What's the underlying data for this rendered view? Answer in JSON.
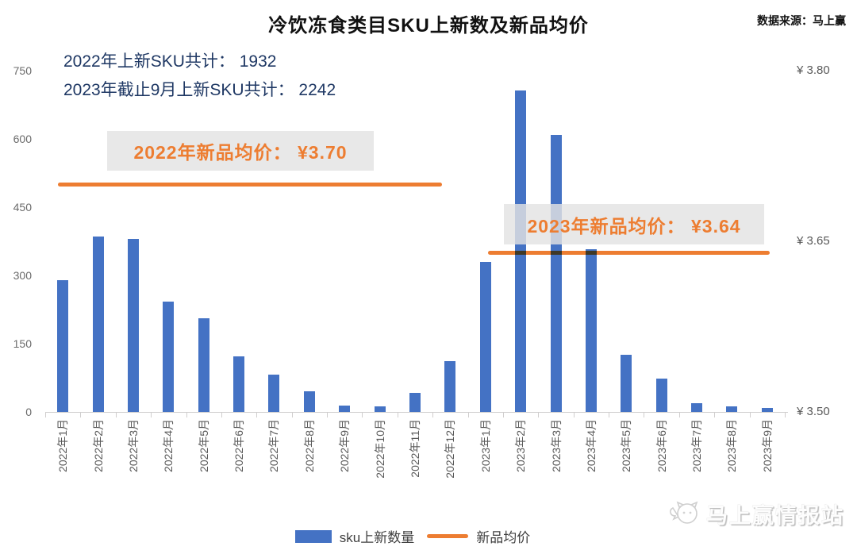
{
  "header": {
    "title": "冷饮冻食类目SKU上新数及新品均价",
    "source": "数据来源：马上赢"
  },
  "annotations": {
    "sku_total_2022": "2022年上新SKU共计： 1932",
    "sku_total_2023": "2023年截止9月上新SKU共计： 2242"
  },
  "watermark": {
    "logo": "cat-face-logo",
    "text": "马上赢情报站"
  },
  "colors": {
    "bar_blue": "#4472C4",
    "accent_orange": "#ED7D31",
    "navy_text": "#1F3864",
    "axis_gray": "#595959",
    "annotation_box_bg": "#E3E3E3"
  },
  "chart_data": {
    "type": "bar",
    "title": "冷饮冻食类目SKU上新数及新品均价",
    "xlabel": "",
    "ylabel": "",
    "grid": false,
    "legend_position": "bottom-center",
    "categories": [
      "2022年1月",
      "2022年2月",
      "2022年3月",
      "2022年4月",
      "2022年5月",
      "2022年6月",
      "2022年7月",
      "2022年8月",
      "2022年9月",
      "2022年10月",
      "2022年11月",
      "2022年12月",
      "2023年1月",
      "2023年2月",
      "2023年3月",
      "2023年4月",
      "2023年5月",
      "2023年6月",
      "2023年7月",
      "2023年8月",
      "2023年9月"
    ],
    "series": [
      {
        "name": "sku上新数量",
        "color": "#4472C4",
        "values": [
          290,
          385,
          380,
          242,
          205,
          122,
          82,
          46,
          14,
          12,
          42,
          112,
          330,
          706,
          608,
          358,
          126,
          73,
          20,
          13,
          8
        ]
      }
    ],
    "ylim": [
      0,
      750
    ],
    "yticks": [
      0,
      150,
      300,
      450,
      600,
      750
    ],
    "y2lim": [
      3.5,
      3.8
    ],
    "y2ticks": [
      {
        "label": "¥ 3.50",
        "value": 3.5
      },
      {
        "label": "¥ 3.65",
        "value": 3.65
      },
      {
        "label": "¥ 3.80",
        "value": 3.8
      }
    ],
    "avg_price_lines": [
      {
        "label": "2022年新品均价： ¥3.70",
        "price": 3.7,
        "span_frac": [
          0.017,
          0.536
        ]
      },
      {
        "label": "2023年新品均价： ¥3.64",
        "price": 3.64,
        "span_frac": [
          0.599,
          0.98
        ]
      }
    ],
    "totals": {
      "sku_2022": 1932,
      "sku_2023_jan_to_sep": 2242
    },
    "legend": [
      {
        "label": "sku上新数量",
        "marker": "bar"
      },
      {
        "label": "新品均价",
        "marker": "line"
      }
    ]
  }
}
